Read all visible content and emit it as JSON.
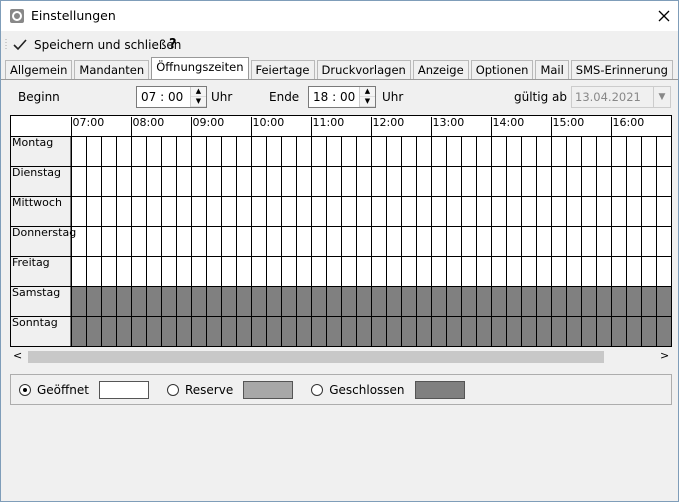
{
  "window": {
    "title": "Einstellungen"
  },
  "toolbar": {
    "save": "Speichern und schließen",
    "help": "?"
  },
  "tabs": [
    "Allgemein",
    "Mandanten",
    "Öffnungszeiten",
    "Feiertage",
    "Druckvorlagen",
    "Anzeige",
    "Optionen",
    "Mail",
    "SMS-Erinnerung"
  ],
  "settings": {
    "begin": {
      "label": "Beginn",
      "hours": "07",
      "minutes": "00",
      "unit": "Uhr"
    },
    "end": {
      "label": "Ende",
      "hours": "18",
      "minutes": "00",
      "unit": "Uhr"
    },
    "valid_from": {
      "label": "gültig ab",
      "date": "13.04.2021"
    }
  },
  "schedule": {
    "hours": [
      "07:00",
      "08:00",
      "09:00",
      "10:00",
      "11:00",
      "12:00",
      "13:00",
      "14:00",
      "15:00",
      "16:00"
    ],
    "days": [
      {
        "name": "Montag",
        "status": "open"
      },
      {
        "name": "Dienstag",
        "status": "open"
      },
      {
        "name": "Mittwoch",
        "status": "open"
      },
      {
        "name": "Donnerstag",
        "status": "open"
      },
      {
        "name": "Freitag",
        "status": "open"
      },
      {
        "name": "Samstag",
        "status": "closed"
      },
      {
        "name": "Sonntag",
        "status": "closed"
      }
    ]
  },
  "legend": [
    {
      "label": "Geöffnet",
      "color": "#ffffff"
    },
    {
      "label": "Reserve",
      "color": "#a8a8a8"
    },
    {
      "label": "Geschlossen",
      "color": "#808080"
    }
  ]
}
